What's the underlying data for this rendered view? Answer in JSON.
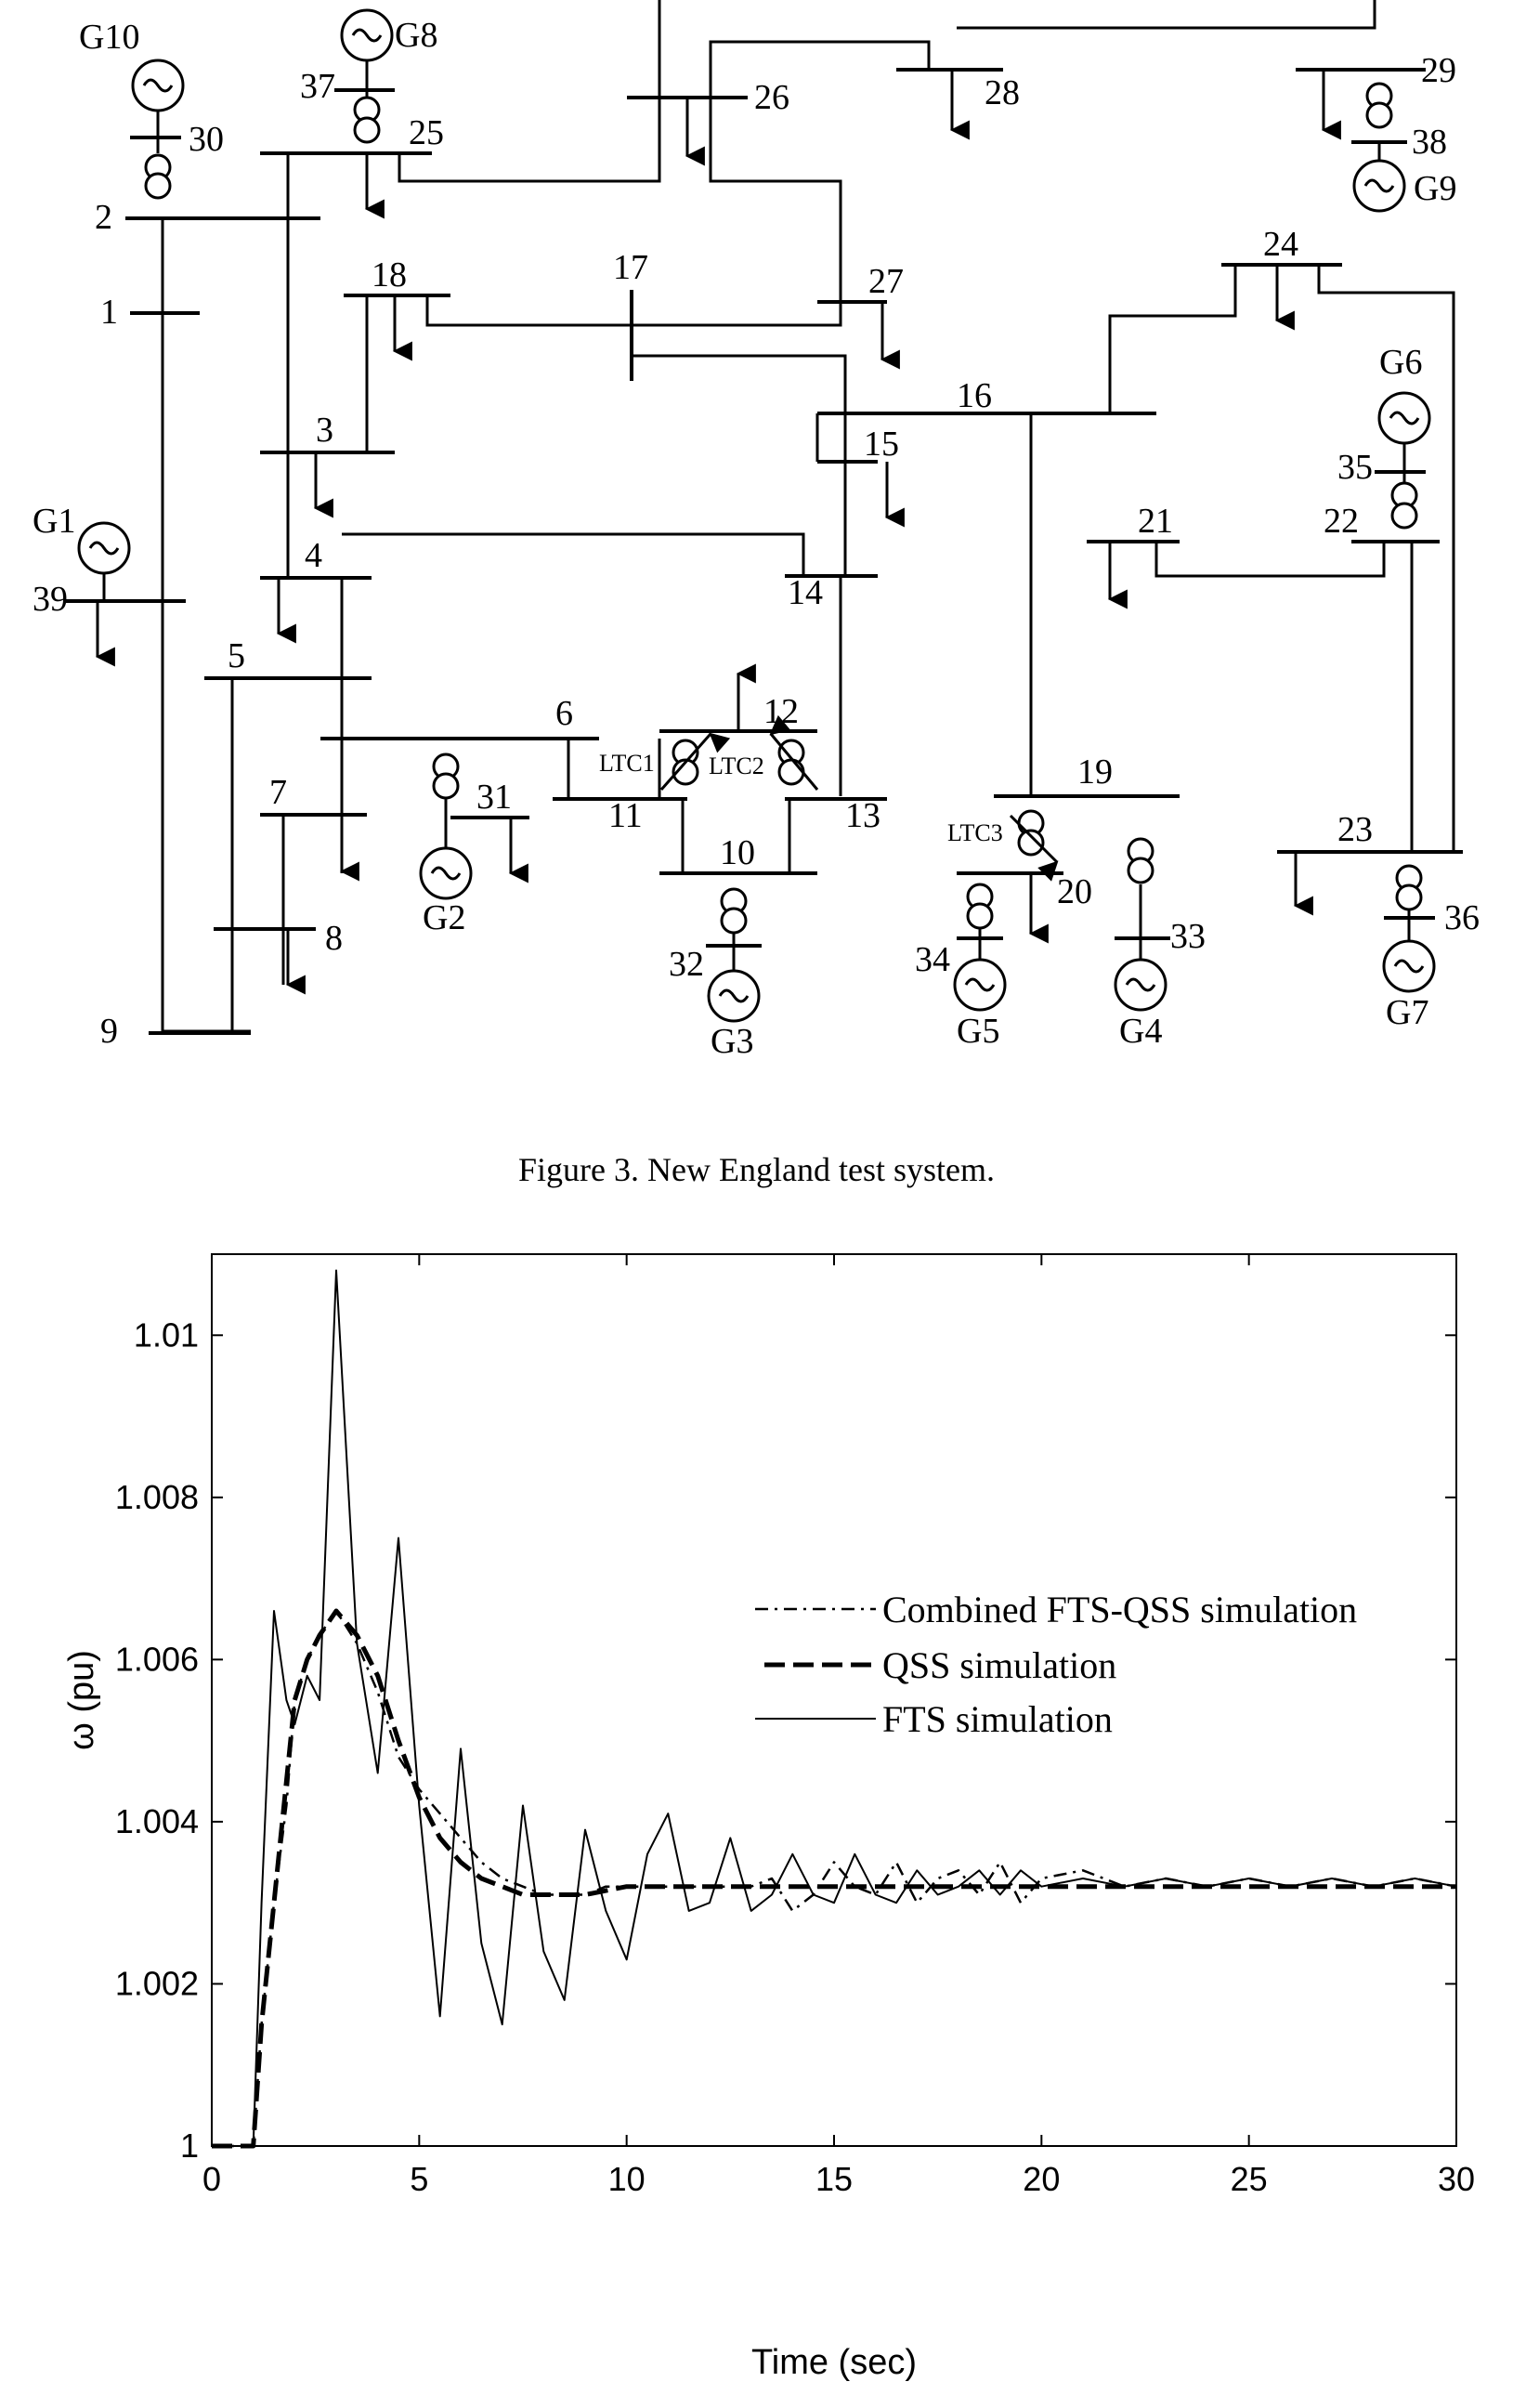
{
  "diagram": {
    "bus_labels": [
      "1",
      "2",
      "3",
      "4",
      "5",
      "6",
      "7",
      "8",
      "9",
      "10",
      "11",
      "12",
      "13",
      "14",
      "15",
      "16",
      "17",
      "18",
      "19",
      "20",
      "21",
      "22",
      "23",
      "24",
      "25",
      "26",
      "27",
      "28",
      "29",
      "30",
      "31",
      "32",
      "33",
      "34",
      "35",
      "36",
      "37",
      "38",
      "39"
    ],
    "generator_labels": [
      "G1",
      "G2",
      "G3",
      "G4",
      "G5",
      "G6",
      "G7",
      "G8",
      "G9",
      "G10"
    ],
    "ltc_labels": [
      "LTC1",
      "LTC2",
      "LTC3"
    ]
  },
  "caption": "Figure 3. New England test system.",
  "chart_data": {
    "type": "line",
    "xlabel": "Time (sec)",
    "ylabel": "ω (pu)",
    "xlim": [
      0,
      30
    ],
    "ylim": [
      1,
      1.011
    ],
    "xticks": [
      "0",
      "5",
      "10",
      "15",
      "20",
      "25",
      "30"
    ],
    "yticks": [
      "1",
      "1.002",
      "1.004",
      "1.006",
      "1.008",
      "1.01"
    ],
    "legend_position": "upper-right",
    "series": [
      {
        "name": "Combined FTS-QSS simulation",
        "style": "dash-dot",
        "x": [
          0,
          0.5,
          1.0,
          1.2,
          1.5,
          1.8,
          2.0,
          2.3,
          2.6,
          3.0,
          3.5,
          4.0,
          4.5,
          5.0,
          5.5,
          6.0,
          6.5,
          7.0,
          7.5,
          8.0,
          8.5,
          9.0,
          9.5,
          10.0,
          11.0,
          12.0,
          13.0,
          13.5,
          14.0,
          14.5,
          15.0,
          15.5,
          16.0,
          16.5,
          17.0,
          17.5,
          18.0,
          18.5,
          19.0,
          19.5,
          20.0,
          21.0,
          22.0,
          23.0,
          24.0,
          25.0,
          26.0,
          27.0,
          28.0,
          29.0,
          30.0
        ],
        "y": [
          1.0,
          1.0,
          1.0,
          1.0015,
          1.003,
          1.0042,
          1.0055,
          1.006,
          1.0063,
          1.0066,
          1.0062,
          1.0056,
          1.0048,
          1.0044,
          1.0041,
          1.0038,
          1.0035,
          1.0033,
          1.0032,
          1.0031,
          1.0031,
          1.0031,
          1.0032,
          1.0032,
          1.0032,
          1.0032,
          1.0032,
          1.0033,
          1.0029,
          1.0031,
          1.0035,
          1.0032,
          1.0031,
          1.0035,
          1.003,
          1.0033,
          1.0034,
          1.0031,
          1.0035,
          1.003,
          1.0033,
          1.0034,
          1.0032,
          1.0033,
          1.0032,
          1.0033,
          1.0032,
          1.0033,
          1.0032,
          1.0033,
          1.0032
        ]
      },
      {
        "name": "QSS simulation",
        "style": "dashed",
        "x": [
          0,
          0.5,
          1.0,
          1.2,
          1.5,
          1.8,
          2.0,
          2.3,
          2.6,
          3.0,
          3.5,
          4.0,
          4.5,
          5.0,
          5.5,
          6.0,
          6.5,
          7.0,
          7.5,
          8.0,
          9.0,
          10.0,
          12.0,
          14.0,
          16.0,
          18.0,
          20.0,
          22.0,
          24.0,
          26.0,
          28.0,
          30.0
        ],
        "y": [
          1.0,
          1.0,
          1.0,
          1.0015,
          1.003,
          1.0045,
          1.0055,
          1.006,
          1.0063,
          1.0066,
          1.0063,
          1.0058,
          1.005,
          1.0043,
          1.0038,
          1.0035,
          1.0033,
          1.0032,
          1.0031,
          1.0031,
          1.0031,
          1.0032,
          1.0032,
          1.0032,
          1.0032,
          1.0032,
          1.0032,
          1.0032,
          1.0032,
          1.0032,
          1.0032,
          1.0032
        ]
      },
      {
        "name": "FTS simulation",
        "style": "solid",
        "x": [
          0,
          0.5,
          1.0,
          1.2,
          1.5,
          1.8,
          2.0,
          2.3,
          2.6,
          3.0,
          3.5,
          4.0,
          4.5,
          5.0,
          5.5,
          6.0,
          6.5,
          7.0,
          7.5,
          8.0,
          8.5,
          9.0,
          9.5,
          10.0,
          10.5,
          11.0,
          11.5,
          12.0,
          12.5,
          13.0,
          13.5,
          14.0,
          14.5,
          15.0,
          15.5,
          16.0,
          16.5,
          17.0,
          17.5,
          18.0,
          18.5,
          19.0,
          19.5,
          20.0,
          21.0,
          22.0,
          23.0,
          24.0,
          25.0,
          26.0,
          27.0,
          28.0,
          29.0,
          30.0
        ],
        "y": [
          1.0,
          1.0,
          1.0,
          1.003,
          1.0066,
          1.0055,
          1.0052,
          1.0058,
          1.0055,
          1.0108,
          1.0062,
          1.0046,
          1.0075,
          1.0042,
          1.0016,
          1.0049,
          1.0025,
          1.0015,
          1.0042,
          1.0024,
          1.0018,
          1.0039,
          1.0029,
          1.0023,
          1.0036,
          1.0041,
          1.0029,
          1.003,
          1.0038,
          1.0029,
          1.0031,
          1.0036,
          1.0031,
          1.003,
          1.0036,
          1.0031,
          1.003,
          1.0034,
          1.0031,
          1.0032,
          1.0034,
          1.0031,
          1.0034,
          1.0032,
          1.0033,
          1.0032,
          1.0033,
          1.0032,
          1.0033,
          1.0032,
          1.0033,
          1.0032,
          1.0033,
          1.0032
        ]
      }
    ]
  }
}
